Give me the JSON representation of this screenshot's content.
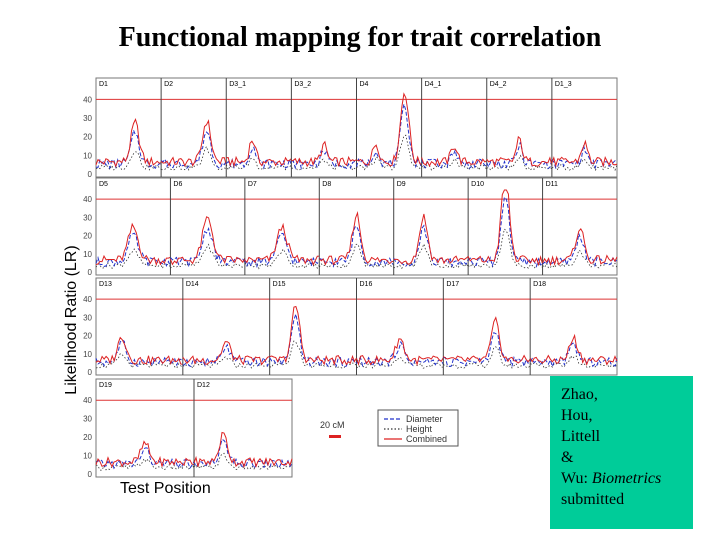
{
  "title": "Functional mapping for trait correlation",
  "citation": {
    "lines": [
      "Zhao,",
      "Hou,",
      "Littell",
      "&"
    ],
    "last_prefix": "Wu: ",
    "journal": "Biometrics",
    "status": "submitted"
  },
  "colors": {
    "diameter": "#2233cc",
    "height": "#333333",
    "combined": "#dd2222",
    "threshold": "#dd3333",
    "citation_bg": "#00cc99"
  },
  "chart_data": {
    "type": "line",
    "ylabel": "Likelihood Ratio (LR)",
    "xlabel": "Test Position",
    "scale_bar": "20 cM",
    "legend": [
      "Diameter",
      "Height",
      "Combined"
    ],
    "yticks": [
      0,
      10,
      20,
      30,
      40
    ],
    "ylim": [
      0,
      45
    ],
    "threshold": 40,
    "panels": [
      {
        "segments": [
          {
            "label": "D1",
            "peaks": [
              [
                0.6,
                21,
                4
              ]
            ]
          },
          {
            "label": "D2",
            "peaks": [
              [
                0.7,
                22,
                4
              ]
            ]
          },
          {
            "label": "D3_1",
            "peaks": [
              [
                0.4,
                12,
                3
              ]
            ]
          },
          {
            "label": "D3_2",
            "peaks": [
              [
                0.5,
                9,
                3
              ]
            ]
          },
          {
            "label": "D4",
            "peaks": [
              [
                0.74,
                38,
                4
              ],
              [
                0.3,
                10,
                3
              ]
            ]
          },
          {
            "label": "D4_1",
            "peaks": [
              [
                0.5,
                9,
                3
              ]
            ]
          },
          {
            "label": "D4_2",
            "peaks": [
              [
                0.5,
                12,
                3
              ]
            ]
          },
          {
            "label": "D1_3",
            "peaks": [
              [
                0.5,
                10,
                3
              ]
            ]
          }
        ]
      },
      {
        "segments": [
          {
            "label": "D5",
            "peaks": [
              [
                0.5,
                18,
                5
              ]
            ]
          },
          {
            "label": "D6",
            "peaks": [
              [
                0.5,
                23,
                5
              ]
            ]
          },
          {
            "label": "D7",
            "peaks": [
              [
                0.5,
                18,
                5
              ]
            ]
          },
          {
            "label": "D8",
            "peaks": [
              [
                0.5,
                25,
                4
              ]
            ]
          },
          {
            "label": "D9",
            "peaks": [
              [
                0.4,
                24,
                4
              ]
            ]
          },
          {
            "label": "D10",
            "peaks": [
              [
                0.5,
                46,
                4
              ]
            ]
          },
          {
            "label": "D11",
            "peaks": [
              [
                0.5,
                18,
                4
              ]
            ]
          }
        ]
      },
      {
        "segments": [
          {
            "label": "D13",
            "peaks": [
              [
                0.3,
                13,
                4
              ]
            ]
          },
          {
            "label": "D14",
            "peaks": [
              [
                0.5,
                10,
                4
              ]
            ]
          },
          {
            "label": "D15",
            "peaks": [
              [
                0.3,
                30,
                4
              ]
            ]
          },
          {
            "label": "D16",
            "peaks": [
              [
                0.5,
                12,
                4
              ]
            ]
          },
          {
            "label": "D17",
            "peaks": [
              [
                0.6,
                21,
                4
              ]
            ]
          },
          {
            "label": "D18",
            "peaks": [
              [
                0.5,
                12,
                4
              ]
            ]
          }
        ]
      },
      {
        "segments": [
          {
            "label": "D19",
            "peaks": [
              [
                0.5,
                10,
                4
              ]
            ]
          },
          {
            "label": "D12",
            "peaks": [
              [
                0.3,
                15,
                4
              ]
            ]
          }
        ]
      }
    ]
  }
}
